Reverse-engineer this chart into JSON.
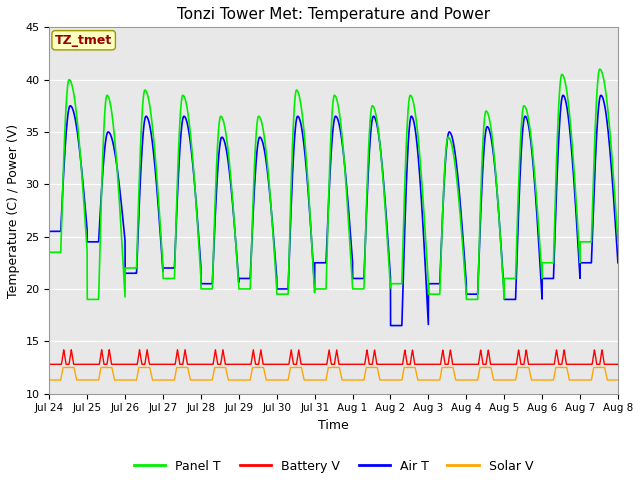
{
  "title": "Tonzi Tower Met: Temperature and Power",
  "xlabel": "Time",
  "ylabel": "Temperature (C) / Power (V)",
  "xlim": [
    0,
    15
  ],
  "ylim": [
    10,
    45
  ],
  "yticks": [
    10,
    15,
    20,
    25,
    30,
    35,
    40,
    45
  ],
  "xtick_labels": [
    "Jul 24",
    "Jul 25",
    "Jul 26",
    "Jul 27",
    "Jul 28",
    "Jul 29",
    "Jul 30",
    "Jul 31",
    "Aug 1",
    "Aug 2",
    "Aug 3",
    "Aug 4",
    "Aug 5",
    "Aug 6",
    "Aug 7",
    "Aug 8"
  ],
  "annotation_text": "TZ_tmet",
  "annotation_bg": "#FFFFC0",
  "annotation_fg": "#990000",
  "bg_color": "#E8E8E8",
  "panel_color": "#00EE00",
  "battery_color": "#FF0000",
  "air_color": "#0000FF",
  "solar_color": "#FFA500",
  "legend_labels": [
    "Panel T",
    "Battery V",
    "Air T",
    "Solar V"
  ],
  "panel_peaks": [
    40.0,
    38.5,
    39.0,
    38.5,
    36.5,
    36.5,
    39.0,
    38.5,
    37.5,
    38.5,
    34.5,
    37.0,
    37.5,
    40.5,
    41.0
  ],
  "panel_troughs": [
    23.5,
    19.0,
    22.0,
    21.0,
    20.0,
    20.0,
    19.5,
    20.0,
    20.0,
    20.5,
    19.5,
    19.0,
    21.0,
    22.5,
    24.5
  ],
  "air_peaks": [
    37.5,
    35.0,
    36.5,
    36.5,
    34.5,
    34.5,
    36.5,
    36.5,
    36.5,
    36.5,
    35.0,
    35.5,
    36.5,
    38.5,
    38.5
  ],
  "air_troughs": [
    25.5,
    24.5,
    21.5,
    22.0,
    20.5,
    21.0,
    20.0,
    22.5,
    21.0,
    21.0,
    20.5,
    19.5,
    19.0,
    21.0,
    22.5
  ],
  "air_special_low_day": 9,
  "air_special_low_val": 16.5,
  "battery_baseline": 12.8,
  "battery_peak": 14.2,
  "solar_baseline": 11.3,
  "solar_peak": 12.5,
  "figsize": [
    6.4,
    4.8
  ],
  "dpi": 100
}
